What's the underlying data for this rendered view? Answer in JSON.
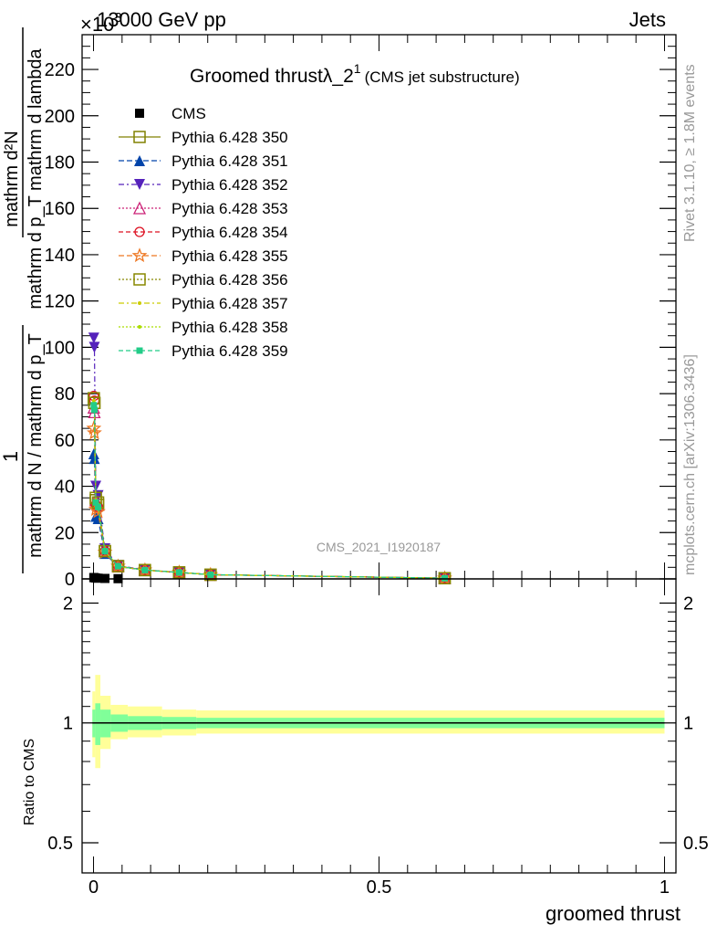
{
  "header": {
    "energy_label": "13000 GeV pp",
    "category_label": "Jets",
    "exponent_label": "×10",
    "exponent_power": "3"
  },
  "side_labels": {
    "rivet": "Rivet 3.1.10, ≥ 1.8M events",
    "mcplots": "mcplots.cern.ch [arXiv:1306.3436]"
  },
  "colors": {
    "ratio_band_outer": "#ffff99",
    "ratio_band_inner": "#80ff99"
  },
  "chart_data": {
    "type": "line",
    "title": "Groomed thrustλ_2",
    "title_superscript": "1",
    "subtitle": "(CMS jet substructure)",
    "analysis_label": "CMS_2021_I1920187",
    "xlabel": "groomed thrust",
    "ylabel": "1 / mathrm d N / mathrm d p_T  mathrm d^2N / mathrm d p_T mathrm d lambda",
    "ylabel_numerator_top": "1",
    "ylabel_denominator_top": "mathrm d N / mathrm d p_T",
    "ylabel_numerator_bottom": "mathrm d²N",
    "ylabel_denominator_bottom": "mathrm d p_T mathrm d lambda",
    "xlim": [
      -0.02,
      1.02
    ],
    "ylim": [
      0,
      235
    ],
    "y_scale_factor": 1000,
    "x_ticks": [
      {
        "value": 0,
        "label": "0"
      },
      {
        "value": 0.5,
        "label": "0.5"
      },
      {
        "value": 1,
        "label": "1"
      }
    ],
    "y_ticks": [
      0,
      20,
      40,
      60,
      80,
      100,
      120,
      140,
      160,
      180,
      200,
      220
    ],
    "legend_position": "top-left",
    "x": [
      0.0005,
      0.0015,
      0.004,
      0.008,
      0.02,
      0.043,
      0.09,
      0.15,
      0.205,
      0.615
    ],
    "data": {
      "name": "CMS",
      "x": [
        0.0005,
        0.0015,
        0.004,
        0.008,
        0.02,
        0.043
      ],
      "values": [
        0.6,
        0.5,
        0.4,
        0.3,
        0.2,
        0.1
      ]
    },
    "series": [
      {
        "name": "Pythia 6.428 350",
        "color": "#808000",
        "marker": "open-square",
        "dash": "solid",
        "values": [
          78,
          76,
          34,
          32,
          12,
          5.5,
          3.8,
          2.8,
          1.8,
          0.3
        ]
      },
      {
        "name": "Pythia 6.428 351",
        "color": "#0044aa",
        "marker": "filled-triangle-up",
        "dash": "6,3",
        "values": [
          54,
          52,
          27,
          26,
          11,
          5.3,
          3.8,
          2.8,
          1.8,
          0.3
        ]
      },
      {
        "name": "Pythia 6.428 352",
        "color": "#5522bb",
        "marker": "filled-triangle-down",
        "dash": "6,3,2,3",
        "values": [
          104,
          100,
          40,
          36,
          13,
          5.8,
          3.9,
          2.8,
          1.8,
          0.3
        ]
      },
      {
        "name": "Pythia 6.428 353",
        "color": "#cc2277",
        "marker": "open-triangle-up",
        "dash": "2,2",
        "values": [
          74,
          72,
          34,
          32,
          12,
          5.5,
          3.8,
          2.8,
          1.8,
          0.3
        ]
      },
      {
        "name": "Pythia 6.428 354",
        "color": "#dd1122",
        "marker": "open-circle",
        "dash": "5,3",
        "values": [
          79,
          77,
          32,
          31,
          12,
          5.5,
          3.8,
          2.8,
          1.8,
          0.3
        ]
      },
      {
        "name": "Pythia 6.428 355",
        "color": "#ee7722",
        "marker": "open-star",
        "dash": "6,3",
        "values": [
          65,
          63,
          30,
          29,
          11.5,
          5.4,
          3.8,
          2.8,
          1.8,
          0.3
        ]
      },
      {
        "name": "Pythia 6.428 356",
        "color": "#888800",
        "marker": "open-square",
        "dash": "2,2",
        "values": [
          78,
          76,
          35,
          33,
          12,
          5.5,
          3.8,
          2.8,
          1.8,
          0.3
        ]
      },
      {
        "name": "Pythia 6.428 357",
        "color": "#cccc00",
        "marker": "small-dot",
        "dash": "6,3,2,3",
        "values": [
          77,
          75,
          34,
          32,
          12,
          5.5,
          3.8,
          2.8,
          1.8,
          0.3
        ]
      },
      {
        "name": "Pythia 6.428 358",
        "color": "#aadd00",
        "marker": "small-dot",
        "dash": "2,2",
        "values": [
          76,
          74,
          33,
          32,
          12,
          5.5,
          3.8,
          2.8,
          1.8,
          0.3
        ]
      },
      {
        "name": "Pythia 6.428 359",
        "color": "#22cc88",
        "marker": "filled-square-small",
        "dash": "5,3",
        "values": [
          75,
          73,
          33,
          31,
          12,
          5.5,
          3.8,
          2.8,
          1.8,
          0.3
        ]
      }
    ],
    "ratio": {
      "ylabel": "Ratio to CMS",
      "ylim": [
        0.42,
        2.3
      ],
      "log_scale": true,
      "y_ticks": [
        {
          "value": 0.5,
          "label": "0.5"
        },
        {
          "value": 1,
          "label": "1"
        },
        {
          "value": 2,
          "label": "2"
        }
      ],
      "bands": [
        {
          "x_from": -0.002,
          "x_to": 0.003,
          "inner": [
            0.92,
            1.08
          ],
          "outer": [
            0.82,
            1.2
          ]
        },
        {
          "x_from": 0.003,
          "x_to": 0.012,
          "inner": [
            0.88,
            1.12
          ],
          "outer": [
            0.77,
            1.32
          ]
        },
        {
          "x_from": 0.012,
          "x_to": 0.03,
          "inner": [
            0.92,
            1.08
          ],
          "outer": [
            0.86,
            1.17
          ]
        },
        {
          "x_from": 0.03,
          "x_to": 0.06,
          "inner": [
            0.95,
            1.05
          ],
          "outer": [
            0.91,
            1.11
          ]
        },
        {
          "x_from": 0.06,
          "x_to": 0.12,
          "inner": [
            0.96,
            1.04
          ],
          "outer": [
            0.92,
            1.1
          ]
        },
        {
          "x_from": 0.12,
          "x_to": 0.18,
          "inner": [
            0.965,
            1.035
          ],
          "outer": [
            0.93,
            1.08
          ]
        },
        {
          "x_from": 0.18,
          "x_to": 1.0,
          "inner": [
            0.97,
            1.03
          ],
          "outer": [
            0.94,
            1.075
          ]
        }
      ]
    }
  }
}
